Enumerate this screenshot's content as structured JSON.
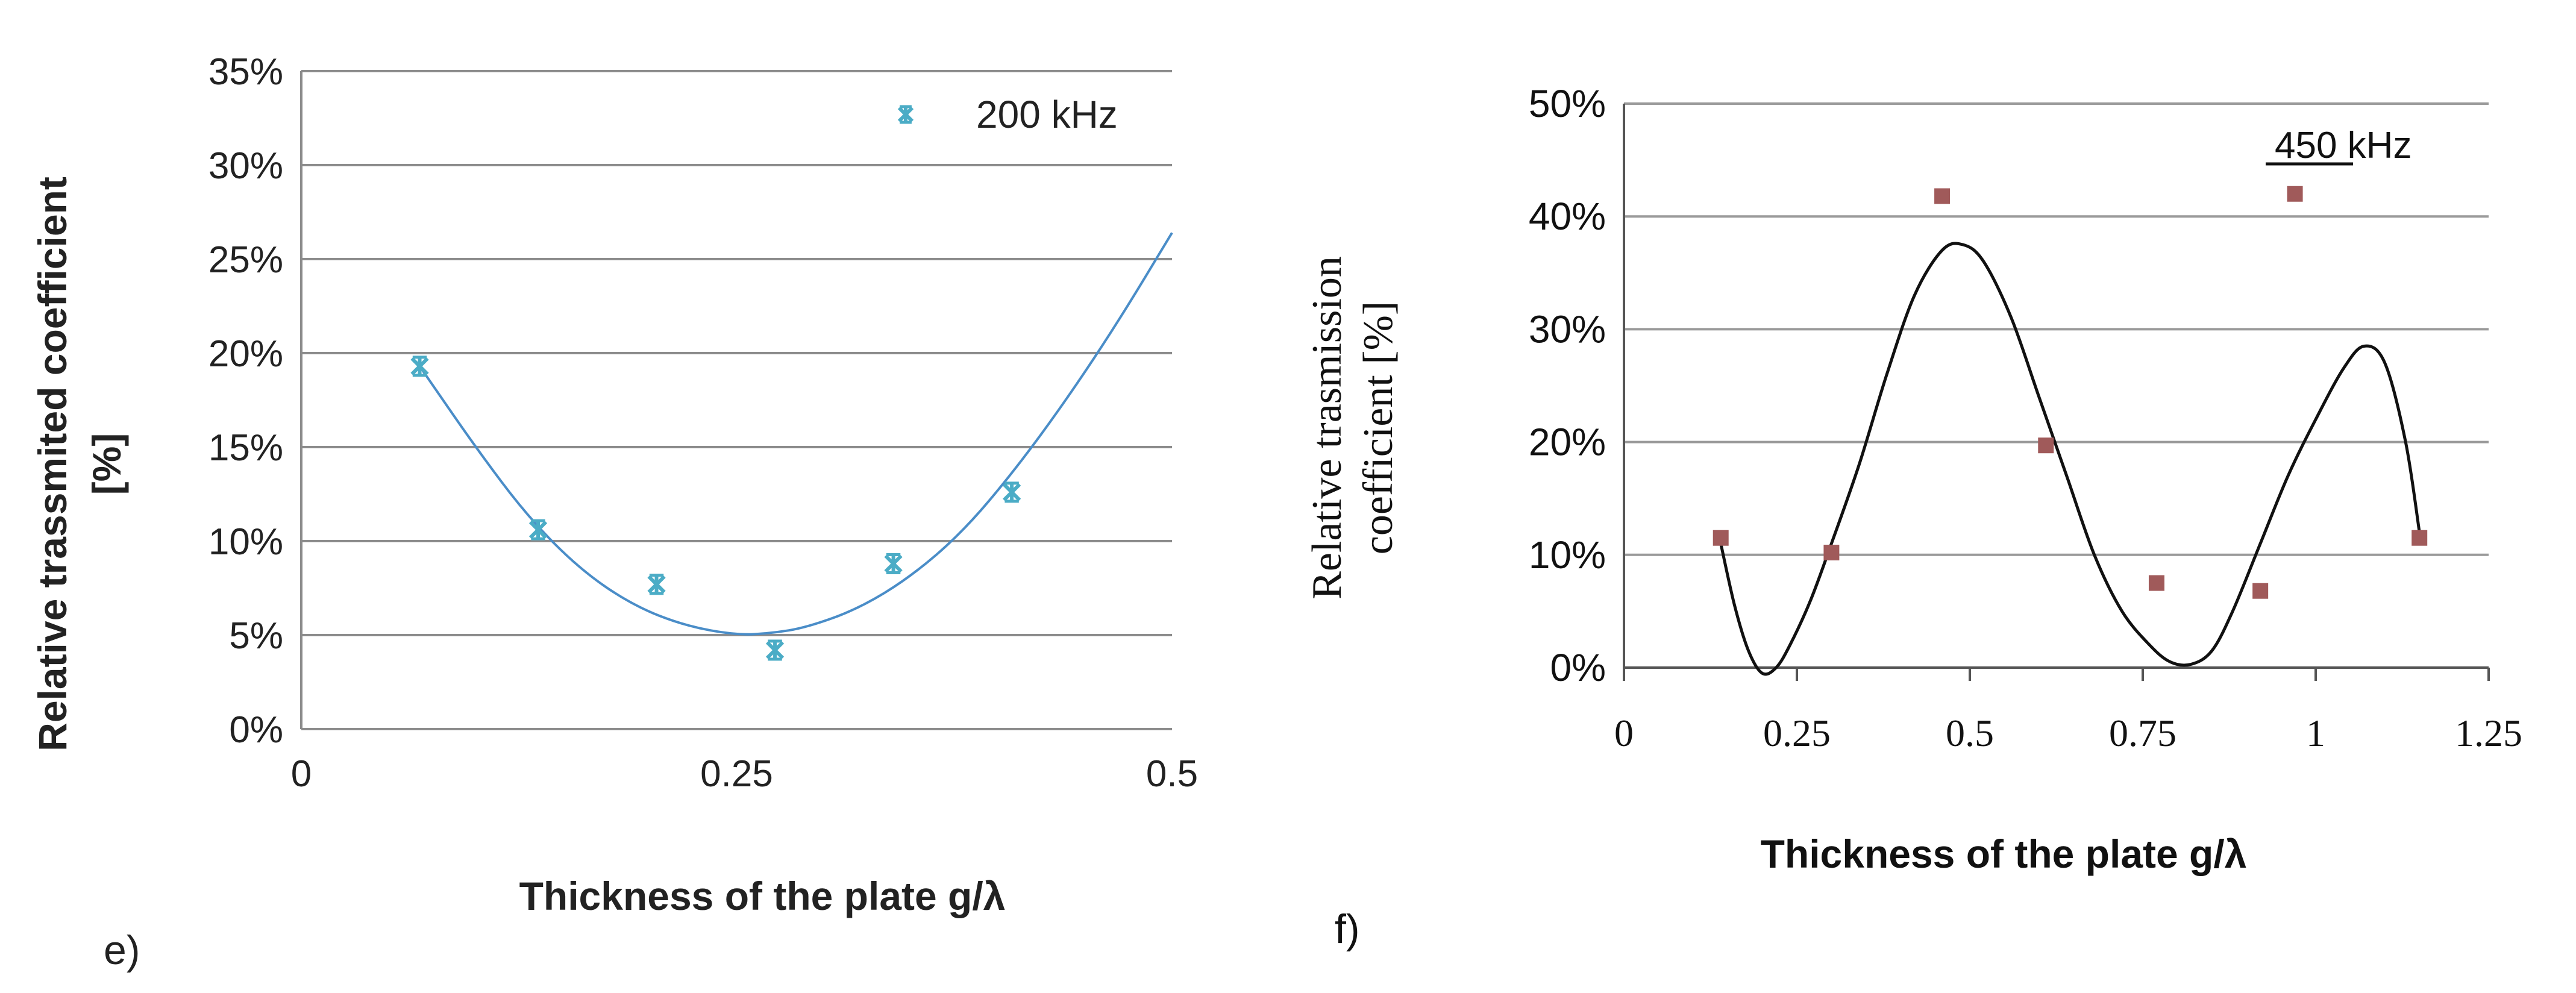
{
  "chart_data": [
    {
      "panel_label": "e)",
      "type": "scatter",
      "xlabel": "Thickness of the plate g/λ",
      "ylabel_line1": "Relative trassmited coefficient",
      "ylabel_line2": "[%]",
      "xlim": [
        0,
        0.5
      ],
      "ylim": [
        0,
        0.35
      ],
      "x_ticks": [
        0,
        0.25,
        0.5
      ],
      "x_tick_labels": [
        "0",
        "0.25",
        "0.5"
      ],
      "y_ticks": [
        0,
        0.05,
        0.1,
        0.15,
        0.2,
        0.25,
        0.3,
        0.35
      ],
      "y_tick_labels": [
        "0%",
        "5%",
        "10%",
        "15%",
        "20%",
        "25%",
        "30%",
        "35%"
      ],
      "grid": "horizontal",
      "legend_position": "top-right",
      "marker_color": "#4bacc6",
      "trend_color": "#4a8dc8",
      "series": [
        {
          "name": "200 kHz",
          "x": [
            0.068,
            0.136,
            0.204,
            0.272,
            0.34,
            0.408
          ],
          "y": [
            0.193,
            0.106,
            0.077,
            0.042,
            0.088,
            0.126
          ]
        }
      ],
      "trendline": {
        "x": [
          0.068,
          0.1,
          0.13,
          0.16,
          0.19,
          0.22,
          0.25,
          0.27,
          0.29,
          0.32,
          0.35,
          0.38,
          0.41,
          0.44,
          0.47,
          0.5
        ],
        "y": [
          0.193,
          0.15,
          0.113,
          0.085,
          0.066,
          0.055,
          0.05,
          0.051,
          0.054,
          0.064,
          0.081,
          0.105,
          0.138,
          0.176,
          0.218,
          0.264
        ]
      }
    },
    {
      "panel_label": "f)",
      "type": "scatter",
      "xlabel": "Thickness  of the plate g/λ",
      "ylabel_line1": "Relative trasmission",
      "ylabel_line2": "coefficient [%]",
      "xlim": [
        0,
        1.25
      ],
      "ylim": [
        0,
        0.5
      ],
      "x_ticks": [
        0,
        0.25,
        0.5,
        0.75,
        1,
        1.25
      ],
      "x_tick_labels": [
        "0",
        "0.25",
        "0.5",
        "0.75",
        "1",
        "1.25"
      ],
      "y_ticks": [
        0,
        0.1,
        0.2,
        0.3,
        0.4,
        0.5
      ],
      "y_tick_labels": [
        "0%",
        "10%",
        "20%",
        "30%",
        "40%",
        "50%"
      ],
      "grid": "horizontal",
      "legend_position": "top-right",
      "marker_color": "#a05a5a",
      "curve_color": "#111111",
      "series": [
        {
          "name": "450 kHz",
          "x": [
            0.14,
            0.3,
            0.46,
            0.61,
            0.77,
            0.92,
            0.97,
            1.15
          ],
          "y": [
            0.115,
            0.102,
            0.418,
            0.197,
            0.075,
            0.068,
            0.42,
            0.115
          ]
        }
      ],
      "curve": {
        "x": [
          0.14,
          0.16,
          0.18,
          0.2,
          0.22,
          0.24,
          0.27,
          0.3,
          0.34,
          0.38,
          0.42,
          0.46,
          0.49,
          0.52,
          0.56,
          0.6,
          0.64,
          0.68,
          0.72,
          0.76,
          0.79,
          0.82,
          0.85,
          0.88,
          0.92,
          0.96,
          1.0,
          1.04,
          1.07,
          1.1,
          1.13,
          1.15
        ],
        "y": [
          0.11,
          0.055,
          0.015,
          -0.005,
          0.0,
          0.02,
          0.06,
          0.11,
          0.18,
          0.26,
          0.33,
          0.37,
          0.375,
          0.36,
          0.31,
          0.24,
          0.17,
          0.1,
          0.05,
          0.02,
          0.005,
          0.003,
          0.015,
          0.05,
          0.11,
          0.17,
          0.22,
          0.265,
          0.285,
          0.27,
          0.2,
          0.12
        ]
      }
    }
  ]
}
